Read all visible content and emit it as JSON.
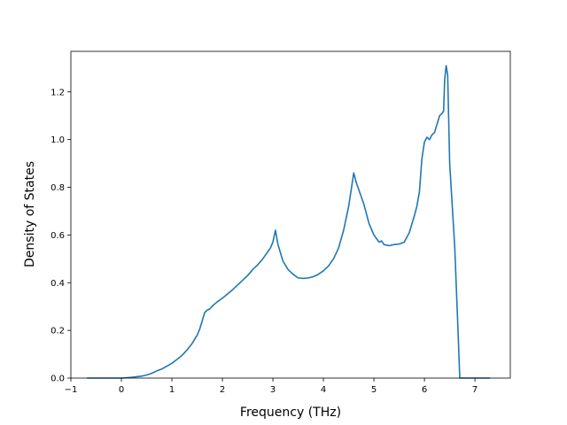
{
  "chart_data": {
    "type": "line",
    "title": "",
    "xlabel": "Frequency (THz)",
    "ylabel": "Density of States",
    "xlim": [
      -1.0,
      7.7
    ],
    "ylim": [
      0.0,
      1.37
    ],
    "xticks": [
      -1,
      0,
      1,
      2,
      3,
      4,
      5,
      6,
      7
    ],
    "xtick_labels": [
      "−1",
      "0",
      "1",
      "2",
      "3",
      "4",
      "5",
      "6",
      "7"
    ],
    "yticks": [
      0.0,
      0.2,
      0.4,
      0.6,
      0.8,
      1.0,
      1.2
    ],
    "ytick_labels": [
      "0.0",
      "0.2",
      "0.4",
      "0.6",
      "0.8",
      "1.0",
      "1.2"
    ],
    "grid": false,
    "series": [
      {
        "color": "#1f77b4",
        "x": [
          -0.68,
          -0.3,
          0.0,
          0.2,
          0.4,
          0.5,
          0.6,
          0.7,
          0.8,
          0.9,
          1.0,
          1.1,
          1.2,
          1.3,
          1.4,
          1.5,
          1.55,
          1.6,
          1.65,
          1.7,
          1.75,
          1.8,
          1.9,
          2.0,
          2.2,
          2.4,
          2.5,
          2.6,
          2.7,
          2.8,
          2.9,
          2.95,
          3.0,
          3.02,
          3.05,
          3.1,
          3.2,
          3.3,
          3.4,
          3.5,
          3.6,
          3.7,
          3.8,
          3.9,
          4.0,
          4.1,
          4.2,
          4.3,
          4.4,
          4.5,
          4.55,
          4.6,
          4.65,
          4.7,
          4.8,
          4.9,
          5.0,
          5.1,
          5.15,
          5.2,
          5.3,
          5.4,
          5.5,
          5.6,
          5.7,
          5.8,
          5.85,
          5.9,
          5.95,
          6.0,
          6.05,
          6.1,
          6.15,
          6.2,
          6.3,
          6.35,
          6.38,
          6.4,
          6.43,
          6.46,
          6.5,
          6.6,
          6.65,
          6.7,
          7.3
        ],
        "y": [
          0.0,
          0.0,
          0.0,
          0.003,
          0.008,
          0.013,
          0.02,
          0.03,
          0.038,
          0.05,
          0.062,
          0.078,
          0.095,
          0.118,
          0.145,
          0.18,
          0.205,
          0.24,
          0.275,
          0.285,
          0.29,
          0.302,
          0.32,
          0.335,
          0.37,
          0.41,
          0.43,
          0.455,
          0.475,
          0.5,
          0.53,
          0.545,
          0.57,
          0.59,
          0.62,
          0.56,
          0.49,
          0.455,
          0.435,
          0.42,
          0.418,
          0.42,
          0.425,
          0.435,
          0.45,
          0.47,
          0.5,
          0.545,
          0.62,
          0.72,
          0.79,
          0.86,
          0.82,
          0.79,
          0.73,
          0.65,
          0.6,
          0.57,
          0.575,
          0.56,
          0.555,
          0.56,
          0.562,
          0.57,
          0.61,
          0.68,
          0.72,
          0.78,
          0.92,
          0.99,
          1.01,
          1.0,
          1.02,
          1.03,
          1.1,
          1.11,
          1.12,
          1.25,
          1.31,
          1.27,
          0.9,
          0.55,
          0.28,
          0.0,
          0.0
        ]
      }
    ]
  }
}
